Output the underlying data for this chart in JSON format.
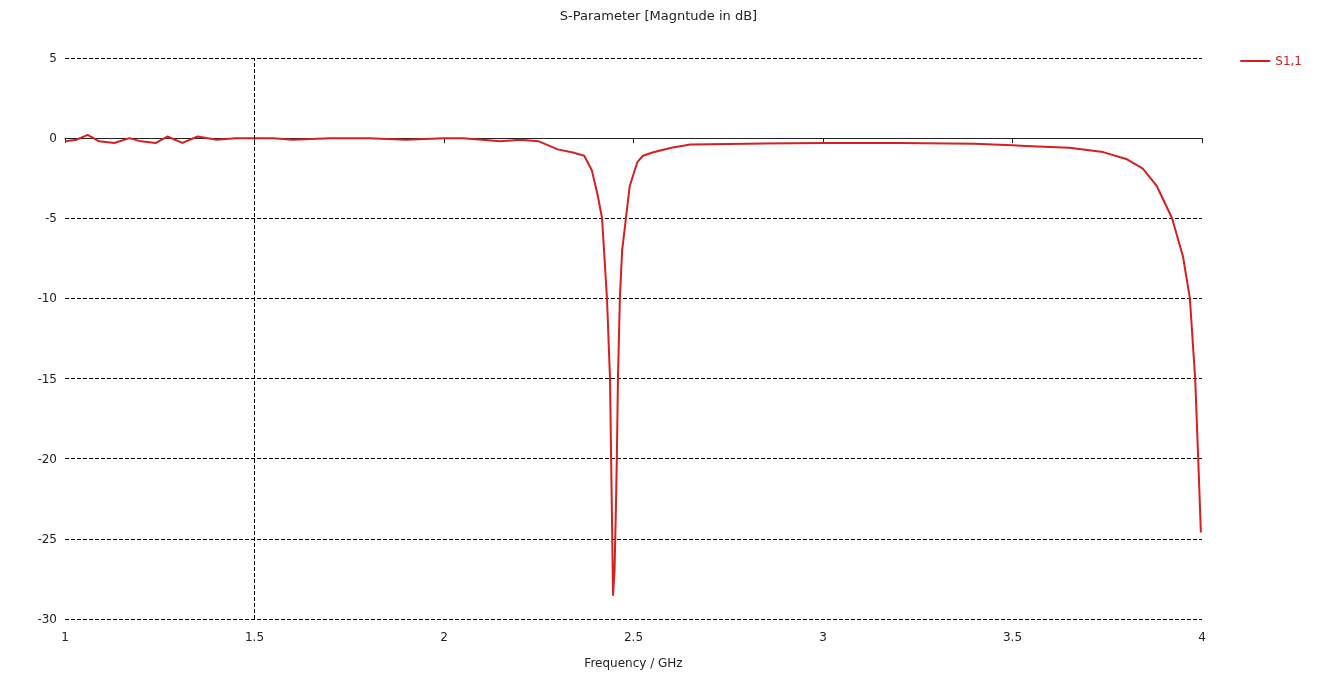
{
  "chart_data": {
    "type": "line",
    "title": "S-Parameter [Magntude in dB]",
    "xlabel": "Frequency / GHz",
    "xlim": [
      1,
      4
    ],
    "xticks": [
      1,
      1.5,
      2,
      2.5,
      3,
      3.5,
      4
    ],
    "ylim": [
      -30,
      5
    ],
    "yticks": [
      5,
      0,
      -5,
      -10,
      -15,
      -20,
      -25,
      -30
    ],
    "grid": "y",
    "legend": "top right",
    "marker": "none",
    "line_style": "solid",
    "ref_lines": [
      {
        "axis": "x",
        "value": 1.5,
        "line_style": "dashed",
        "color": "#000000"
      }
    ],
    "series": [
      {
        "name": "S1,1",
        "color": "#d42020",
        "x": [
          1,
          1.03,
          1.06,
          1.09,
          1.13,
          1.17,
          1.2,
          1.24,
          1.27,
          1.31,
          1.35,
          1.4,
          1.45,
          1.5,
          1.55,
          1.6,
          1.7,
          1.8,
          1.9,
          2,
          2.05,
          2.1,
          2.15,
          2.2,
          2.25,
          2.28,
          2.3,
          2.34,
          2.37,
          2.39,
          2.405,
          2.417,
          2.43,
          2.438,
          2.441,
          2.446,
          2.45,
          2.454,
          2.456,
          2.459,
          2.464,
          2.47,
          2.48,
          2.49,
          2.51,
          2.525,
          2.55,
          2.6,
          2.65,
          2.8,
          3,
          3.2,
          3.4,
          3.55,
          3.65,
          3.739,
          3.8,
          3.844,
          3.881,
          3.921,
          3.95,
          3.968,
          3.982,
          3.99,
          3.997
        ],
        "values": [
          -0.2,
          -0.1,
          0.2,
          -0.2,
          -0.3,
          0,
          -0.2,
          -0.3,
          0.1,
          -0.3,
          0.1,
          -0.1,
          0,
          0,
          0,
          -0.1,
          0,
          0,
          -0.1,
          0,
          0,
          -0.1,
          -0.2,
          -0.1,
          -0.2,
          -0.5,
          -0.7,
          -0.9,
          -1.1,
          -2,
          -3.5,
          -5,
          -10,
          -15,
          -20,
          -28.5,
          -27,
          -22.6,
          -20,
          -15,
          -10,
          -7,
          -5,
          -3,
          -1.5,
          -1.1,
          -0.9,
          -0.6,
          -0.4,
          -0.35,
          -0.3,
          -0.3,
          -0.35,
          -0.5,
          -0.6,
          -0.87,
          -1.3,
          -1.9,
          -3,
          -5,
          -7.4,
          -10,
          -15,
          -20,
          -24.6
        ]
      }
    ]
  }
}
